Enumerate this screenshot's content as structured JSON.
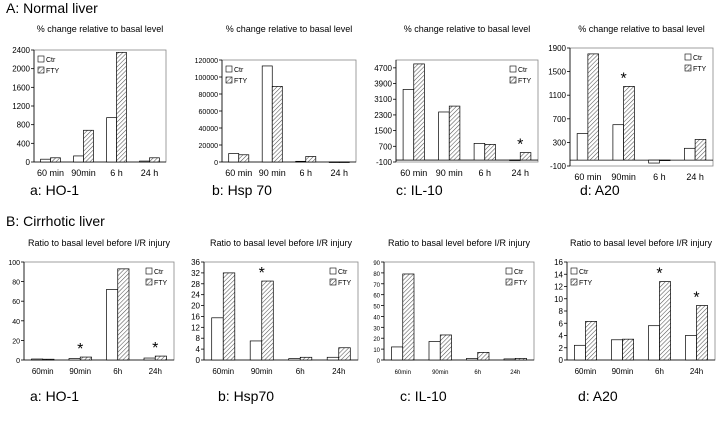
{
  "sections": [
    {
      "title": "A: Normal liver"
    },
    {
      "title": "B: Cirrhotic liver"
    }
  ],
  "colors": {
    "ctr_fill": "#ffffff",
    "fty_fill": "hatched",
    "stroke": "#000000"
  },
  "chart_data": [
    {
      "type": "bar",
      "panel_label": "a: HO-1",
      "title": "% change relative to basal level",
      "categories": [
        "60 min",
        "90min",
        "6 h",
        "24 h"
      ],
      "ylim": [
        0,
        2400
      ],
      "yticks": [
        0,
        400,
        800,
        1200,
        1600,
        2000,
        2400
      ],
      "series": [
        {
          "name": "Ctr",
          "values": [
            60,
            130,
            950,
            20
          ]
        },
        {
          "name": "FTY",
          "values": [
            90,
            680,
            2350,
            90
          ]
        }
      ],
      "annotations": [],
      "legend": "top-left"
    },
    {
      "type": "bar",
      "panel_label": "b: Hsp 70",
      "title": "% change relative to basal level",
      "categories": [
        "60 min",
        "90 min",
        "6 h",
        "24 h"
      ],
      "ylim": [
        0,
        120000
      ],
      "yticks": [
        0,
        20000,
        40000,
        60000,
        80000,
        100000,
        120000
      ],
      "series": [
        {
          "name": "Ctr",
          "values": [
            10000,
            113000,
            800,
            0
          ]
        },
        {
          "name": "FTY",
          "values": [
            8500,
            89000,
            6500,
            0
          ]
        }
      ],
      "annotations": [],
      "legend": "top-left"
    },
    {
      "type": "bar",
      "panel_label": "c: IL-10",
      "title": "% change relative to basal level",
      "categories": [
        "60 min",
        "90 min",
        "6 h",
        "24 h"
      ],
      "ylim": [
        -100,
        5100
      ],
      "yticks": [
        -100,
        700,
        1500,
        2300,
        3100,
        3900,
        4700
      ],
      "series": [
        {
          "name": "Ctr",
          "values": [
            3600,
            2450,
            850,
            -20
          ]
        },
        {
          "name": "FTY",
          "values": [
            4900,
            2750,
            800,
            380
          ]
        }
      ],
      "annotations": [
        {
          "text": "*",
          "category": 3
        }
      ],
      "legend": "top-right"
    },
    {
      "type": "bar",
      "panel_label": "d: A20",
      "title": "% change relative to basal level",
      "categories": [
        "60 min",
        "90min",
        "6 h",
        "24 h"
      ],
      "ylim": [
        -100,
        1900
      ],
      "yticks": [
        -100,
        300,
        700,
        1100,
        1500,
        1900
      ],
      "series": [
        {
          "name": "Ctr",
          "values": [
            450,
            600,
            -50,
            200
          ]
        },
        {
          "name": "FTY",
          "values": [
            1800,
            1250,
            0,
            350
          ]
        }
      ],
      "annotations": [
        {
          "text": "*",
          "category": 1
        }
      ],
      "legend": "top-right"
    },
    {
      "type": "bar",
      "panel_label": "a: HO-1",
      "title": "Ratio to basal level before I/R injury",
      "categories": [
        "60min",
        "90min",
        "6h",
        "24h"
      ],
      "ylim": [
        0,
        100
      ],
      "yticks": [
        0,
        20,
        40,
        60,
        80,
        100
      ],
      "series": [
        {
          "name": "Ctr",
          "values": [
            1,
            1.5,
            72,
            2
          ]
        },
        {
          "name": "FTY",
          "values": [
            0.8,
            3,
            93,
            4
          ]
        }
      ],
      "annotations": [
        {
          "text": "*",
          "category": 1
        },
        {
          "text": "*",
          "category": 3
        }
      ],
      "legend": "top-right"
    },
    {
      "type": "bar",
      "panel_label": "b: Hsp70",
      "title": "Ratio to basal level before I/R injury",
      "categories": [
        "60min",
        "90min",
        "6h",
        "24h"
      ],
      "ylim": [
        0,
        36
      ],
      "yticks": [
        0,
        4,
        8,
        12,
        16,
        20,
        24,
        28,
        32,
        36
      ],
      "series": [
        {
          "name": "Ctr",
          "values": [
            15.5,
            7,
            0.5,
            1
          ]
        },
        {
          "name": "FTY",
          "values": [
            32,
            29,
            1,
            4.5
          ]
        }
      ],
      "annotations": [
        {
          "text": "*",
          "category": 1
        }
      ],
      "legend": "top-right"
    },
    {
      "type": "bar",
      "panel_label": "c: IL-10",
      "title": "Ratio to basal level before I/R injury",
      "categories": [
        "60min",
        "90min",
        "6h",
        "24h"
      ],
      "ylim": [
        0,
        90
      ],
      "yticks": [
        0,
        10,
        20,
        30,
        40,
        50,
        60,
        70,
        80,
        90
      ],
      "series": [
        {
          "name": "Ctr",
          "values": [
            12,
            17,
            1.5,
            1
          ]
        },
        {
          "name": "FTY",
          "values": [
            79,
            23,
            7,
            1.5
          ]
        }
      ],
      "annotations": [],
      "legend": "top-right"
    },
    {
      "type": "bar",
      "panel_label": "d: A20",
      "title": "Ratio to basal level before I/R injury",
      "categories": [
        "60min",
        "90min",
        "6h",
        "24h"
      ],
      "ylim": [
        0,
        16
      ],
      "yticks": [
        0,
        2,
        4,
        6,
        8,
        10,
        12,
        14,
        16
      ],
      "series": [
        {
          "name": "Ctr",
          "values": [
            2.4,
            3.3,
            5.6,
            4
          ]
        },
        {
          "name": "FTY",
          "values": [
            6.3,
            3.4,
            12.8,
            8.9
          ]
        }
      ],
      "annotations": [
        {
          "text": "*",
          "category": 2
        },
        {
          "text": "*",
          "category": 3
        }
      ],
      "legend": "top-left"
    }
  ]
}
